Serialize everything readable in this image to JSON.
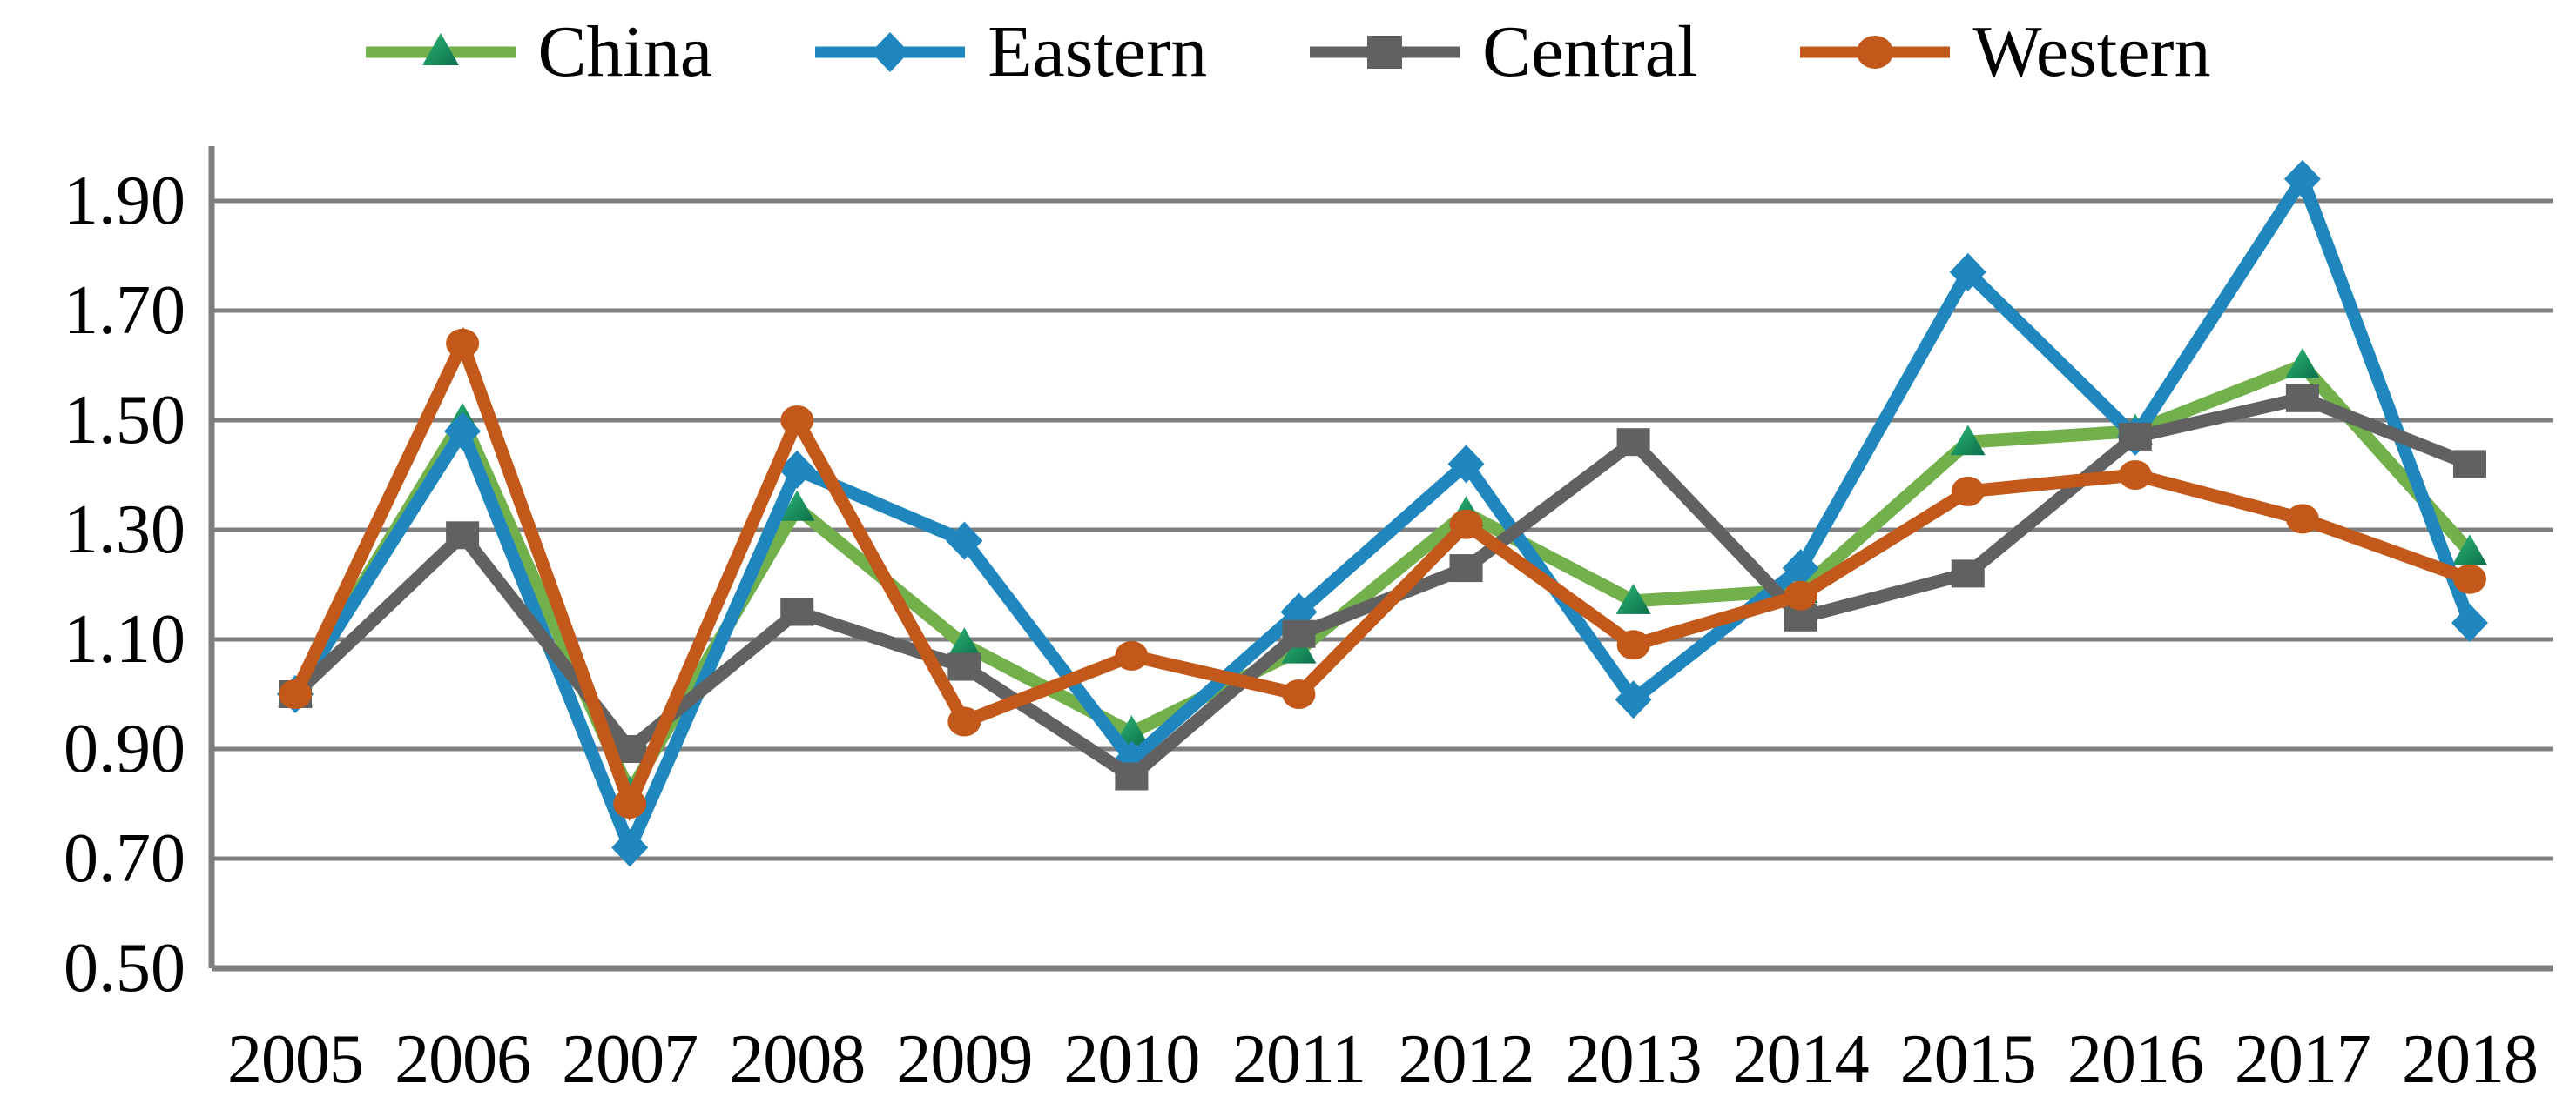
{
  "figure": {
    "type": "line-chart-figure",
    "background": "#ffffff",
    "text_color": "#000000",
    "gridline_color": "#7f7f7f",
    "axis_color": "#7f7f7f"
  },
  "legend": {
    "position": "top",
    "items": [
      {
        "label": "China",
        "marker": "triangle",
        "color": "#72B04C",
        "marker_color_top": "#2FB876",
        "marker_color_bottom": "#0B6E4A"
      },
      {
        "label": "Eastern",
        "marker": "diamond",
        "color": "#1F87BE",
        "marker_color_top": "#1F87BE",
        "marker_color_bottom": "#1F87BE"
      },
      {
        "label": "Central",
        "marker": "square",
        "color": "#616161",
        "marker_color_top": "#5A5A5A",
        "marker_color_bottom": "#5A5A5A"
      },
      {
        "label": "Western",
        "marker": "circle",
        "color": "#C2591B",
        "marker_color_top": "#C2591B",
        "marker_color_bottom": "#C2591B"
      }
    ]
  },
  "chart_data": {
    "type": "line",
    "title": "",
    "xlabel": "",
    "ylabel": "",
    "categories": [
      "2005",
      "2006",
      "2007",
      "2008",
      "2009",
      "2010",
      "2011",
      "2012",
      "2013",
      "2014",
      "2015",
      "2016",
      "2017",
      "2018"
    ],
    "series": [
      {
        "name": "China",
        "marker": "triangle",
        "color": "#72B04C",
        "values": [
          1.0,
          1.5,
          0.82,
          1.34,
          1.09,
          0.93,
          1.08,
          1.33,
          1.17,
          1.19,
          1.46,
          1.48,
          1.6,
          1.26
        ]
      },
      {
        "name": "Eastern",
        "marker": "diamond",
        "color": "#1F87BE",
        "values": [
          1.0,
          1.48,
          0.72,
          1.41,
          1.28,
          0.88,
          1.15,
          1.42,
          0.99,
          1.23,
          1.77,
          1.47,
          1.94,
          1.13
        ]
      },
      {
        "name": "Central",
        "marker": "square",
        "color": "#616161",
        "values": [
          1.0,
          1.29,
          0.9,
          1.15,
          1.05,
          0.85,
          1.11,
          1.23,
          1.46,
          1.14,
          1.22,
          1.47,
          1.54,
          1.42
        ]
      },
      {
        "name": "Western",
        "marker": "circle",
        "color": "#C2591B",
        "values": [
          1.0,
          1.64,
          0.8,
          1.5,
          0.95,
          1.07,
          1.0,
          1.31,
          1.09,
          1.18,
          1.37,
          1.4,
          1.32,
          1.21
        ]
      }
    ],
    "ylim": [
      0.5,
      2.0
    ],
    "ytick_values": [
      1.9,
      1.7,
      1.5,
      1.3,
      1.1,
      0.9,
      0.7,
      0.5
    ],
    "ytick_labels": [
      "1.90",
      "1.70",
      "1.50",
      "1.30",
      "1.10",
      "0.90",
      "0.70",
      "0.50"
    ],
    "grid": true,
    "legend_position": "top"
  }
}
